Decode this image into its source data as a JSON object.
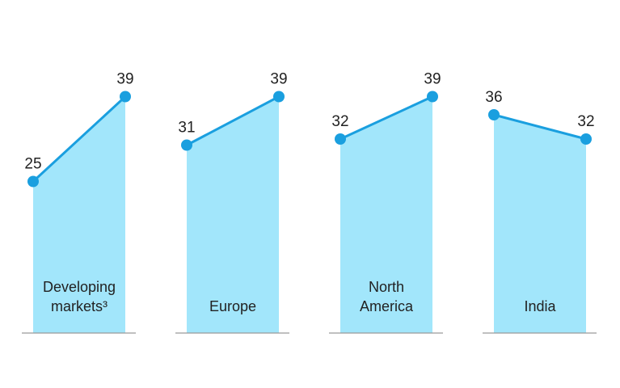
{
  "chart_data": [
    {
      "type": "area",
      "title": "Developing markets³",
      "categories": [
        null,
        null
      ],
      "values": [
        25,
        39
      ],
      "ylim": [
        0,
        50
      ],
      "color": "#1a9fdf",
      "fill": "#a2e6fb"
    },
    {
      "type": "area",
      "title": "Europe",
      "categories": [
        null,
        null
      ],
      "values": [
        31,
        39
      ],
      "ylim": [
        0,
        50
      ],
      "color": "#1a9fdf",
      "fill": "#a2e6fb"
    },
    {
      "type": "area",
      "title": "North America",
      "categories": [
        null,
        null
      ],
      "values": [
        32,
        39
      ],
      "ylim": [
        0,
        50
      ],
      "color": "#1a9fdf",
      "fill": "#a2e6fb"
    },
    {
      "type": "area",
      "title": "India",
      "categories": [
        null,
        null
      ],
      "values": [
        36,
        32
      ],
      "ylim": [
        0,
        50
      ],
      "color": "#1a9fdf",
      "fill": "#a2e6fb"
    }
  ]
}
